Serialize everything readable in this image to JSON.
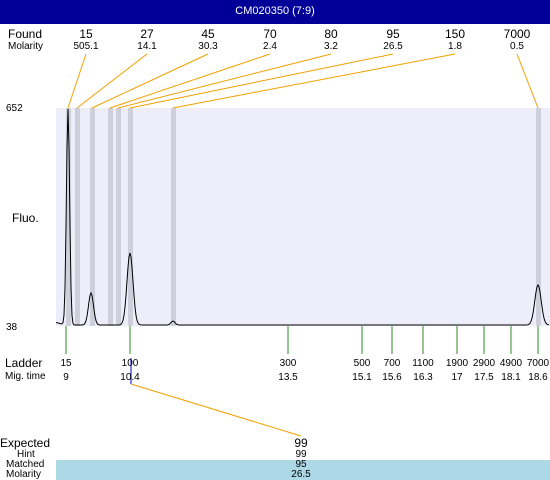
{
  "window": {
    "title": "CM020350 (7:9)"
  },
  "labels": {
    "found": "Found",
    "molarity": "Molarity",
    "fluo": "Fluo.",
    "ladder": "Ladder",
    "mig_time": "Mig. time",
    "expected": "Expected",
    "hint": "Hint",
    "matched": "Matched",
    "molarity_bottom": "Molarity"
  },
  "y_axis": {
    "max": "652",
    "min": "38"
  },
  "found_peaks": [
    {
      "size": "15",
      "molarity": "505.1"
    },
    {
      "size": "27",
      "molarity": "14.1"
    },
    {
      "size": "45",
      "molarity": "30.3"
    },
    {
      "size": "70",
      "molarity": "2.4"
    },
    {
      "size": "80",
      "molarity": "3.2"
    },
    {
      "size": "95",
      "molarity": "26.5"
    },
    {
      "size": "150",
      "molarity": "1.8"
    },
    {
      "size": "7000",
      "molarity": "0.5"
    }
  ],
  "ladder": [
    {
      "size": "15",
      "time": "9"
    },
    {
      "size": "100",
      "time": "10.4"
    },
    {
      "size": "300",
      "time": "13.5"
    },
    {
      "size": "500",
      "time": "15.1"
    },
    {
      "size": "700",
      "time": "15.6"
    },
    {
      "size": "1100",
      "time": "16.3"
    },
    {
      "size": "1900",
      "time": "17"
    },
    {
      "size": "2900",
      "time": "17.5"
    },
    {
      "size": "4900",
      "time": "18.1"
    },
    {
      "size": "7000",
      "time": "18.6"
    }
  ],
  "expected": {
    "value": "99",
    "hint": "99",
    "matched": "95",
    "molarity": "26.5"
  },
  "colors": {
    "plot_bg": "#eeeefa",
    "peak_band": "#cfcfdc",
    "connector": "#f0a000",
    "ladder_tick": "#2e8b2e",
    "highlight_tick": "#0000cc",
    "matched_band": "#add8e6",
    "title_bar": "#000099"
  }
}
